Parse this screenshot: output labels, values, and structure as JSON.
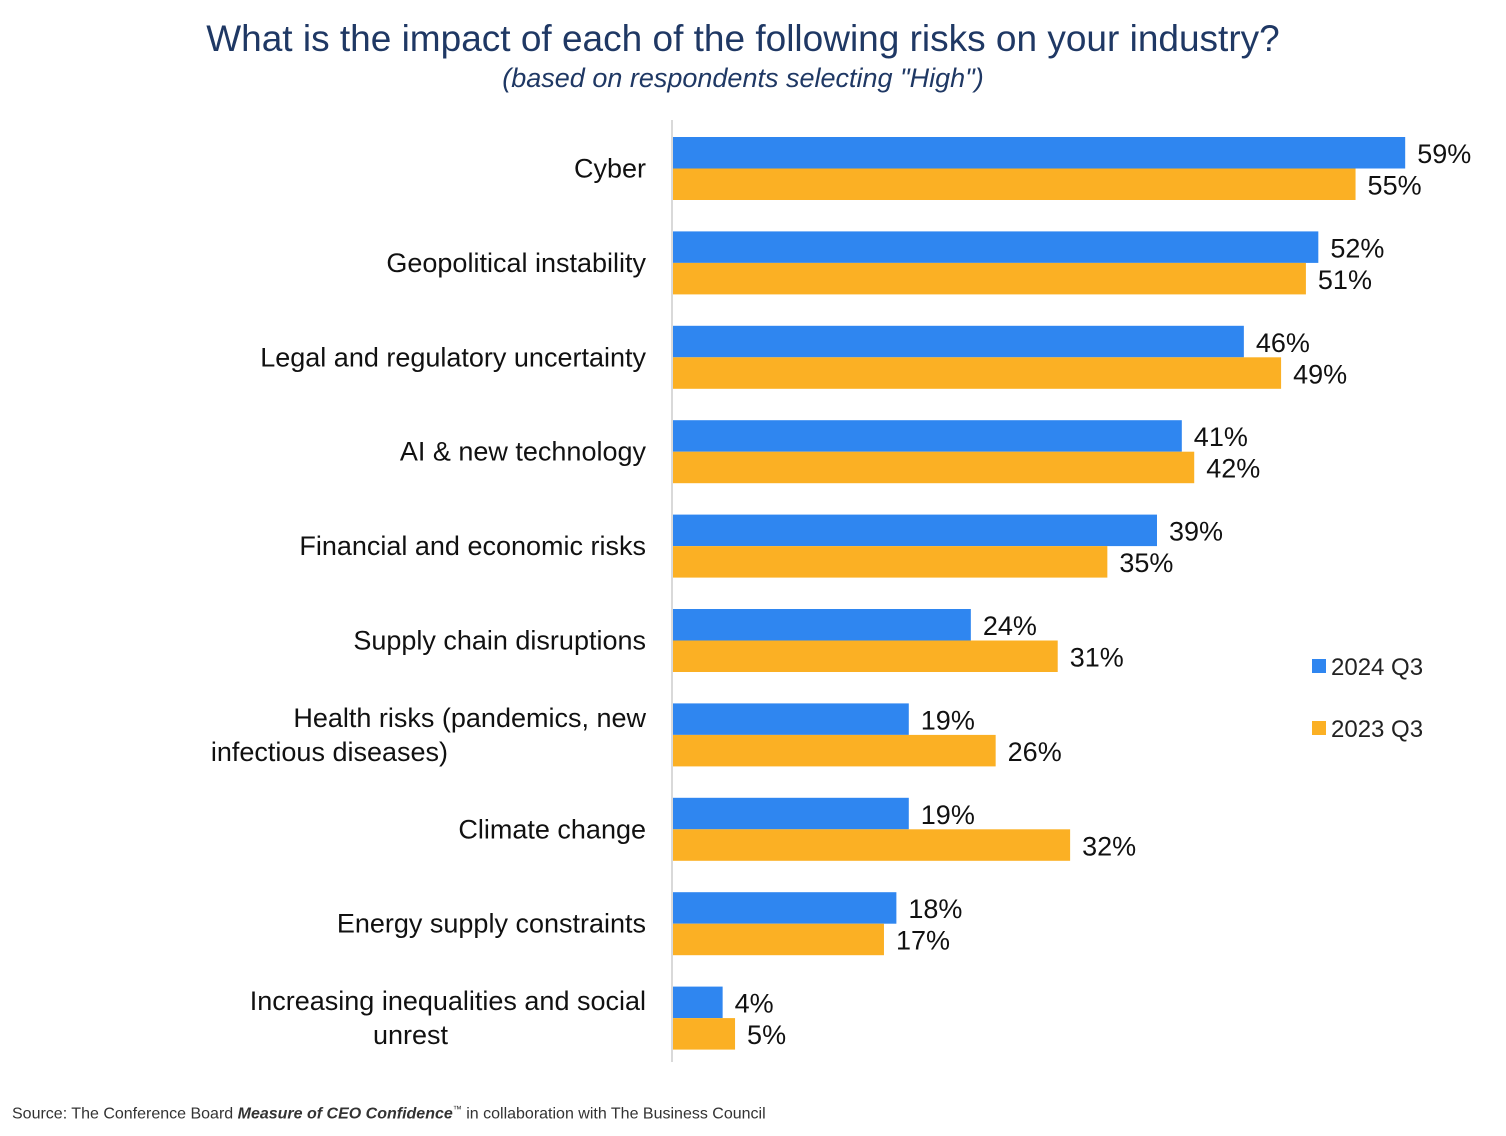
{
  "title": "What is the impact of each of the following risks on your industry?",
  "subtitle": "(based on respondents selecting \"High\")",
  "source": {
    "prefix": "Source: The Conference Board ",
    "emphasis": "Measure of CEO Confidence",
    "tm": "™",
    "suffix": " in collaboration with The Business Council"
  },
  "chart_data": {
    "type": "bar",
    "orientation": "horizontal",
    "categories": [
      "Cyber",
      "Geopolitical instability",
      "Legal and regulatory uncertainty",
      "AI & new technology",
      "Financial and economic risks",
      "Supply chain disruptions",
      "Health risks (pandemics, new infectious diseases)",
      "Climate change",
      "Energy supply constraints",
      "Increasing inequalities and social unrest"
    ],
    "series": [
      {
        "name": "2024 Q3",
        "color": "#2f86f0",
        "values": [
          59,
          52,
          46,
          41,
          39,
          24,
          19,
          19,
          18,
          4
        ]
      },
      {
        "name": "2023 Q3",
        "color": "#fbb024",
        "values": [
          55,
          51,
          49,
          42,
          35,
          31,
          26,
          32,
          17,
          5
        ]
      }
    ],
    "value_suffix": "%",
    "xlim": [
      0,
      59
    ],
    "grid": false,
    "legend": "right"
  }
}
